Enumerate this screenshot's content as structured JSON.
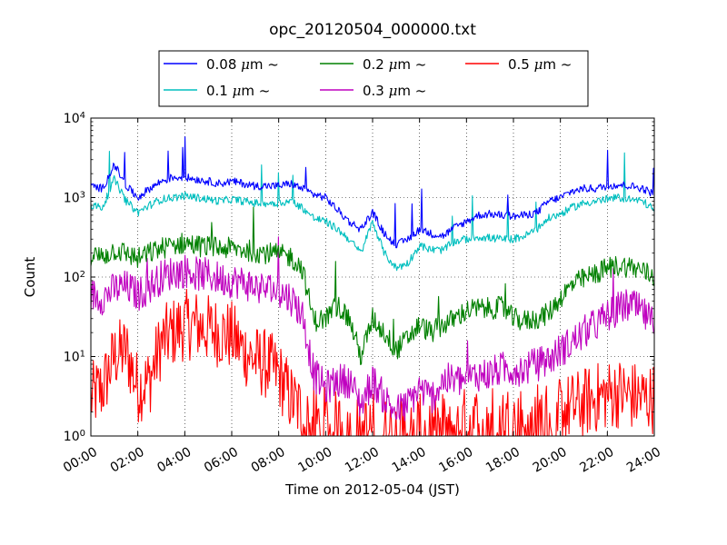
{
  "chart_data": {
    "type": "line",
    "title": "opc_20120504_000000.txt",
    "xlabel": "Time on 2012-05-04 (JST)",
    "ylabel": "Count",
    "yscale": "log",
    "ylim": [
      1,
      10000
    ],
    "xlim": [
      "00:00",
      "24:00"
    ],
    "grid": true,
    "legend_position": "top-center",
    "x_ticks": [
      "00:00",
      "02:00",
      "04:00",
      "06:00",
      "08:00",
      "10:00",
      "12:00",
      "14:00",
      "16:00",
      "18:00",
      "20:00",
      "22:00",
      "24:00"
    ],
    "y_ticks": [
      {
        "value": 1,
        "base": "10",
        "exp": "0"
      },
      {
        "value": 10,
        "base": "10",
        "exp": "1"
      },
      {
        "value": 100,
        "base": "10",
        "exp": "2"
      },
      {
        "value": 1000,
        "base": "10",
        "exp": "3"
      },
      {
        "value": 10000,
        "base": "10",
        "exp": "4"
      }
    ],
    "x": [
      "00:00",
      "00:30",
      "01:00",
      "01:30",
      "02:00",
      "02:30",
      "03:00",
      "03:30",
      "04:00",
      "04:30",
      "05:00",
      "05:30",
      "06:00",
      "06:30",
      "07:00",
      "07:30",
      "08:00",
      "08:30",
      "09:00",
      "09:30",
      "10:00",
      "10:30",
      "11:00",
      "11:30",
      "12:00",
      "12:30",
      "13:00",
      "13:30",
      "14:00",
      "14:30",
      "15:00",
      "15:30",
      "16:00",
      "16:30",
      "17:00",
      "17:30",
      "18:00",
      "18:30",
      "19:00",
      "19:30",
      "20:00",
      "20:30",
      "21:00",
      "21:30",
      "22:00",
      "22:30",
      "23:00",
      "23:30",
      "24:00"
    ],
    "series": [
      {
        "name": "0.08 μm ~",
        "label_prefix": "0.08 ",
        "label_unit": "μm",
        "label_suffix": " ~",
        "color": "#0000ff",
        "noise": 0.05,
        "spike_rate": 0.01,
        "values": [
          1400,
          1300,
          2600,
          1400,
          1000,
          1300,
          1600,
          1800,
          1800,
          1700,
          1600,
          1500,
          1600,
          1500,
          1400,
          1400,
          1400,
          1500,
          1300,
          1100,
          1000,
          700,
          500,
          400,
          650,
          350,
          250,
          300,
          400,
          350,
          330,
          420,
          500,
          600,
          620,
          600,
          580,
          600,
          650,
          900,
          1000,
          1200,
          1300,
          1300,
          1400,
          1450,
          1400,
          1300,
          1100
        ]
      },
      {
        "name": "0.1 μm ~",
        "label_prefix": "0.1 ",
        "label_unit": "μm",
        "label_suffix": " ~",
        "color": "#00bfbf",
        "noise": 0.05,
        "spike_rate": 0.01,
        "values": [
          800,
          750,
          1700,
          900,
          650,
          800,
          950,
          1000,
          1050,
          1000,
          950,
          900,
          950,
          900,
          850,
          850,
          850,
          900,
          750,
          550,
          500,
          400,
          300,
          200,
          500,
          200,
          130,
          150,
          250,
          220,
          220,
          280,
          300,
          320,
          310,
          300,
          300,
          330,
          400,
          550,
          620,
          750,
          850,
          900,
          950,
          1000,
          950,
          900,
          700
        ]
      },
      {
        "name": "0.2 μm ~",
        "label_prefix": "0.2 ",
        "label_unit": "μm",
        "label_suffix": " ~",
        "color": "#008000",
        "noise": 0.14,
        "spike_rate": 0.012,
        "values": [
          190,
          180,
          220,
          200,
          170,
          200,
          230,
          250,
          270,
          250,
          240,
          230,
          230,
          220,
          210,
          200,
          190,
          180,
          130,
          28,
          30,
          45,
          30,
          10,
          30,
          20,
          12,
          17,
          25,
          20,
          25,
          30,
          38,
          40,
          40,
          42,
          30,
          28,
          30,
          35,
          55,
          80,
          95,
          110,
          130,
          140,
          135,
          120,
          100
        ]
      },
      {
        "name": "0.3 μm ~",
        "label_prefix": "0.3 ",
        "label_unit": "μm",
        "label_suffix": " ~",
        "color": "#bf00bf",
        "noise": 0.22,
        "spike_rate": 0.008,
        "values": [
          60,
          55,
          70,
          75,
          60,
          75,
          100,
          115,
          120,
          110,
          105,
          95,
          90,
          85,
          75,
          70,
          65,
          55,
          35,
          6,
          4,
          5,
          5,
          2.5,
          5,
          3,
          2,
          2.5,
          4,
          3,
          5,
          5,
          5,
          6,
          6,
          7,
          7,
          7,
          8,
          9,
          12,
          15,
          20,
          25,
          32,
          40,
          45,
          35,
          25
        ]
      },
      {
        "name": "0.5 μm ~",
        "label_prefix": "0.5 ",
        "label_unit": "μm",
        "label_suffix": " ~",
        "color": "#ff0000",
        "noise": 0.45,
        "spike_rate": 0.0,
        "values": [
          3,
          4,
          10,
          12,
          4,
          5,
          15,
          20,
          25,
          25,
          22,
          20,
          18,
          12,
          9,
          8,
          6,
          3,
          2,
          1.5,
          1.5,
          1.3,
          1.3,
          1.1,
          1.3,
          1.1,
          1.1,
          1.1,
          1.2,
          1.2,
          1.3,
          1.3,
          1.5,
          1.5,
          1.6,
          1.6,
          1.6,
          1.6,
          1.7,
          1.8,
          2,
          2.3,
          2.6,
          3,
          3.3,
          3.5,
          3.2,
          3,
          3
        ]
      }
    ]
  }
}
